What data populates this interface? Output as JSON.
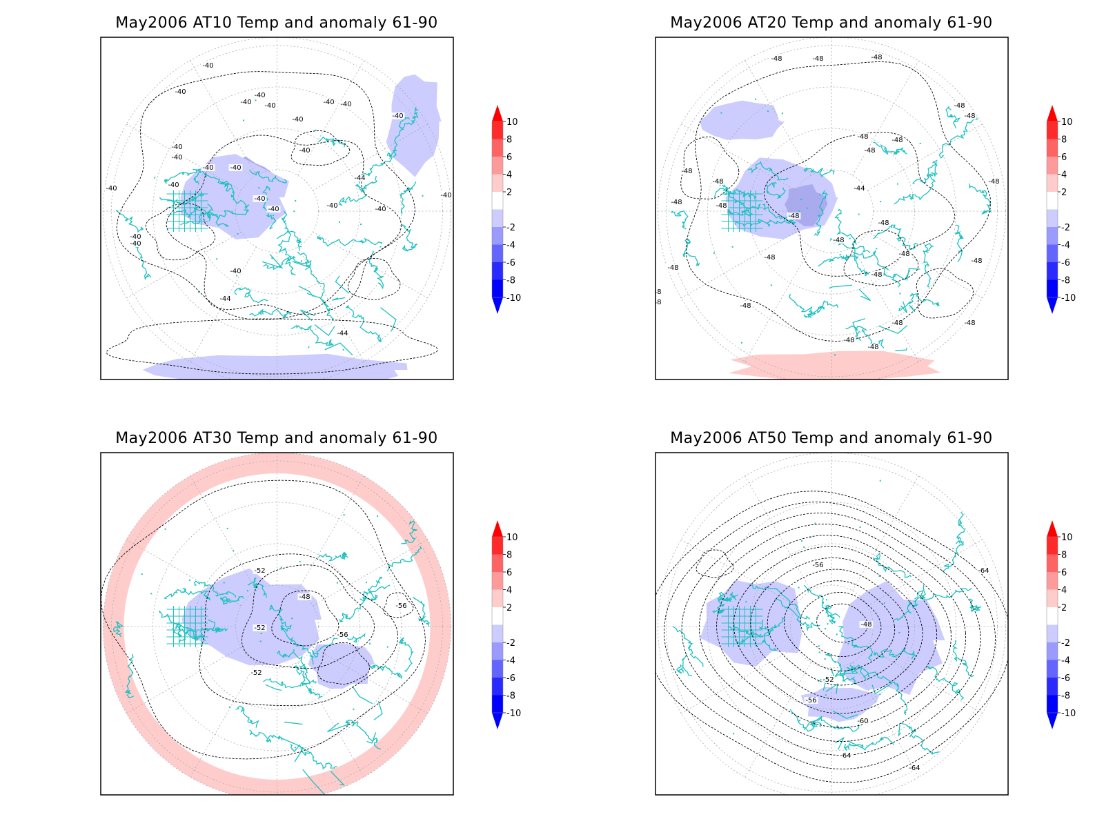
{
  "figure": {
    "panels": [
      {
        "title": "May2006 AT10 Temp and anomaly 61-90",
        "contour_labels": [
          "-40",
          "-40",
          "-40",
          "-40",
          "-40",
          "-40",
          "-40",
          "-40",
          "-40",
          "-40",
          "-40",
          "-40",
          "-40",
          "-40",
          "-40",
          "-40",
          "-40",
          "-40",
          "-40",
          "-40",
          "-40",
          "-40",
          "-40",
          "-40",
          "-44",
          "-44",
          "-44"
        ],
        "anomaly_patches": [
          {
            "sign": "negative",
            "level": -4,
            "region": "Canadian Arctic / Baffin"
          },
          {
            "sign": "negative",
            "level": -2,
            "region": "Canadian Arctic / Greenland"
          },
          {
            "sign": "negative",
            "level": -2,
            "region": "East Asia coast"
          },
          {
            "sign": "negative",
            "level": -2,
            "region": "Southern rim"
          }
        ]
      },
      {
        "title": "May2006 AT20 Temp and anomaly 61-90",
        "contour_labels": [
          "-48",
          "-48",
          "-48",
          "-48",
          "-48",
          "-48",
          "-48",
          "-48",
          "-48",
          "-48",
          "-48",
          "-48",
          "-48",
          "-48",
          "-48",
          "-48",
          "-48",
          "-48",
          "-48",
          "-48",
          "-48",
          "-48",
          "-48",
          "-44",
          "-48",
          "-48",
          "-48",
          "-48",
          "-48"
        ],
        "anomaly_patches": [
          {
            "sign": "negative",
            "level": -2,
            "region": "North Pacific"
          },
          {
            "sign": "negative",
            "level": -2,
            "region": "Canadian Arctic"
          },
          {
            "sign": "negative",
            "level": -4,
            "region": "Baffin"
          },
          {
            "sign": "positive",
            "level": 2,
            "region": "Southern rim"
          }
        ]
      },
      {
        "title": "May2006 AT30 Temp and anomaly 61-90",
        "contour_labels": [
          "-52",
          "-48",
          "-52",
          "-56",
          "-56",
          "-52"
        ],
        "anomaly_patches": [
          {
            "sign": "positive",
            "level": 2,
            "region": "Outer ring"
          },
          {
            "sign": "negative",
            "level": -2,
            "region": "Canadian Arctic"
          },
          {
            "sign": "negative",
            "level": -2,
            "region": "Siberia"
          }
        ]
      },
      {
        "title": "May2006 AT50 Temp and anomaly 61-90",
        "contour_labels": [
          "-56",
          "-48",
          "-52",
          "-56",
          "-60",
          "-64",
          "-64",
          "-64"
        ],
        "anomaly_patches": [
          {
            "sign": "negative",
            "level": -2,
            "region": "Canadian Arctic"
          },
          {
            "sign": "negative",
            "level": -2,
            "region": "Siberia"
          },
          {
            "sign": "negative",
            "level": -2,
            "region": "Atlantic"
          }
        ]
      }
    ],
    "colorbar": {
      "levels": [
        "10",
        "8",
        "6",
        "4",
        "2",
        "-2",
        "-4",
        "-6",
        "-8",
        "-10"
      ],
      "colors": [
        "#ff2a2a",
        "#ff6464",
        "#ff9a9a",
        "#ffcccc",
        "#ffffff",
        "#ccccff",
        "#9a9aff",
        "#6464ff",
        "#2a2aff",
        "#0000ff"
      ],
      "top_color": "#ff0000",
      "bottom_color": "#0000ff"
    },
    "colors": {
      "coastline": "#1ec0c0",
      "contour": "#000000",
      "graticule": "#aaaaaa",
      "negative_light": "#ccccff",
      "negative_mid": "#aaaaee",
      "positive_light": "#ffcccc"
    }
  }
}
